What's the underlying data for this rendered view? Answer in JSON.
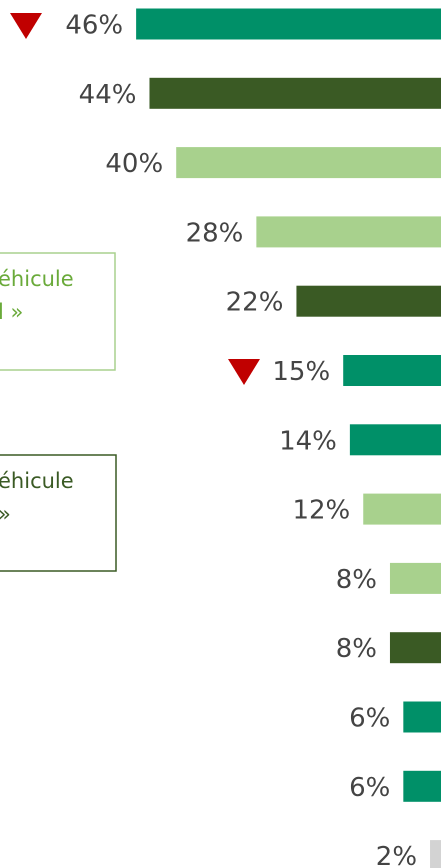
{
  "chart_data": {
    "type": "bar",
    "orientation": "horizontal",
    "values": [
      46,
      44,
      40,
      28,
      22,
      15,
      14,
      12,
      8,
      8,
      6,
      6,
      2
    ],
    "value_labels": [
      "46%",
      "44%",
      "40%",
      "28%",
      "22%",
      "15%",
      "14%",
      "12%",
      "8%",
      "8%",
      "6%",
      "6%",
      "2%"
    ],
    "colors": [
      "#009068",
      "#3a5a24",
      "#a8d18d",
      "#a8d18d",
      "#3a5a24",
      "#009068",
      "#009068",
      "#a8d18d",
      "#a8d18d",
      "#3a5a24",
      "#009068",
      "#009068",
      "#d3d3d3"
    ],
    "legend": [
      {
        "lines": [
          "éhicule",
          "l »"
        ],
        "color": "#6aaa3a",
        "border": "#a8d18d"
      },
      {
        "lines": [
          "éhicule",
          "»"
        ],
        "color": "#3a5a24",
        "border": "#3a5a24"
      }
    ]
  }
}
